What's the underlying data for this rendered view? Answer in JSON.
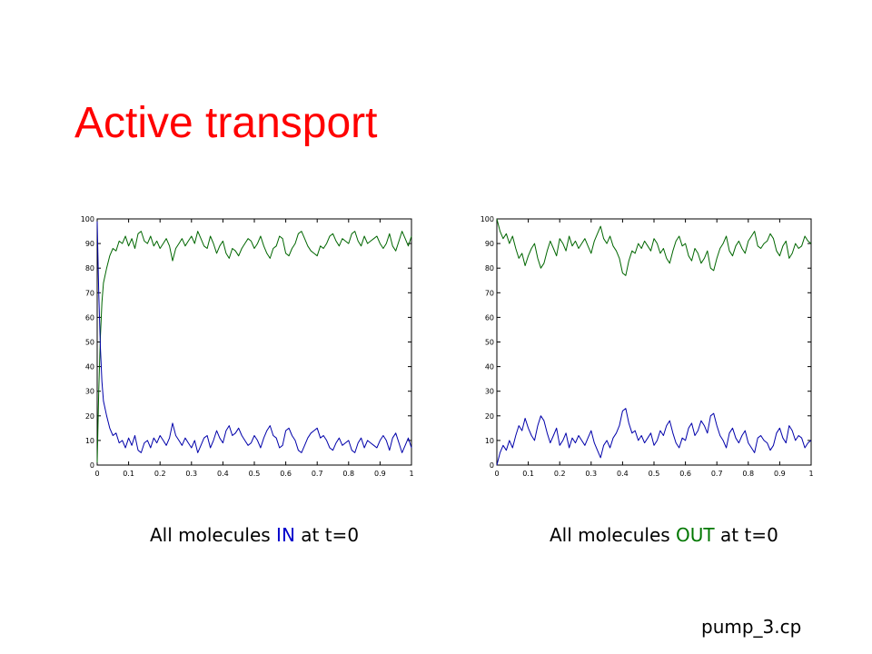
{
  "slide": {
    "title": "Active transport",
    "footer": "pump_3.cp"
  },
  "captions": [
    {
      "prefix": "All molecules ",
      "keyword": "IN",
      "keyword_color": "#0000cc",
      "suffix": " at t=0"
    },
    {
      "prefix": "All molecules ",
      "keyword": "OUT",
      "keyword_color": "#007700",
      "suffix": " at t=0"
    }
  ],
  "chart_data": [
    {
      "type": "line",
      "title": "",
      "xlabel": "",
      "ylabel": "",
      "xlim": [
        0,
        1
      ],
      "ylim": [
        0,
        100
      ],
      "xticks": [
        "0",
        "0.1",
        "0.2",
        "0.3",
        "0.4",
        "0.5",
        "0.6",
        "0.7",
        "0.8",
        "0.9",
        "1"
      ],
      "yticks": [
        "0",
        "10",
        "20",
        "30",
        "40",
        "50",
        "60",
        "70",
        "80",
        "90",
        "100"
      ],
      "grid": false,
      "series": [
        {
          "color": "#006600",
          "x": [
            0,
            0.005,
            0.01,
            0.015,
            0.02,
            0.03,
            0.04,
            0.05,
            0.06,
            0.07,
            0.08,
            0.09,
            0.1,
            0.11,
            0.12,
            0.13,
            0.14,
            0.15,
            0.16,
            0.17,
            0.18,
            0.19,
            0.2,
            0.21,
            0.22,
            0.23,
            0.24,
            0.25,
            0.26,
            0.27,
            0.28,
            0.29,
            0.3,
            0.31,
            0.32,
            0.33,
            0.34,
            0.35,
            0.36,
            0.37,
            0.38,
            0.39,
            0.4,
            0.41,
            0.42,
            0.43,
            0.44,
            0.45,
            0.46,
            0.47,
            0.48,
            0.49,
            0.5,
            0.51,
            0.52,
            0.53,
            0.54,
            0.55,
            0.56,
            0.57,
            0.58,
            0.59,
            0.6,
            0.61,
            0.62,
            0.63,
            0.64,
            0.65,
            0.66,
            0.67,
            0.68,
            0.69,
            0.7,
            0.71,
            0.72,
            0.73,
            0.74,
            0.75,
            0.76,
            0.77,
            0.78,
            0.79,
            0.8,
            0.81,
            0.82,
            0.83,
            0.84,
            0.85,
            0.86,
            0.87,
            0.88,
            0.89,
            0.9,
            0.91,
            0.92,
            0.93,
            0.94,
            0.95,
            0.96,
            0.97,
            0.98,
            0.99,
            1.0
          ],
          "y": [
            1,
            30,
            52,
            66,
            74,
            80,
            85,
            88,
            87,
            91,
            90,
            93,
            89,
            92,
            88,
            94,
            95,
            91,
            90,
            93,
            89,
            91,
            88,
            90,
            92,
            89,
            83,
            88,
            90,
            92,
            89,
            91,
            93,
            90,
            95,
            92,
            89,
            88,
            93,
            90,
            86,
            89,
            91,
            86,
            84,
            88,
            87,
            85,
            88,
            90,
            92,
            91,
            88,
            90,
            93,
            89,
            86,
            84,
            88,
            89,
            93,
            92,
            86,
            85,
            88,
            90,
            94,
            95,
            92,
            89,
            87,
            86,
            85,
            89,
            88,
            90,
            93,
            94,
            91,
            89,
            92,
            91,
            90,
            94,
            95,
            91,
            89,
            93,
            90,
            91,
            92,
            93,
            90,
            88,
            90,
            94,
            89,
            87,
            91,
            95,
            92,
            89,
            93
          ]
        },
        {
          "color": "#0000aa",
          "x": [
            0,
            0.005,
            0.01,
            0.015,
            0.02,
            0.03,
            0.04,
            0.05,
            0.06,
            0.07,
            0.08,
            0.09,
            0.1,
            0.11,
            0.12,
            0.13,
            0.14,
            0.15,
            0.16,
            0.17,
            0.18,
            0.19,
            0.2,
            0.21,
            0.22,
            0.23,
            0.24,
            0.25,
            0.26,
            0.27,
            0.28,
            0.29,
            0.3,
            0.31,
            0.32,
            0.33,
            0.34,
            0.35,
            0.36,
            0.37,
            0.38,
            0.39,
            0.4,
            0.41,
            0.42,
            0.43,
            0.44,
            0.45,
            0.46,
            0.47,
            0.48,
            0.49,
            0.5,
            0.51,
            0.52,
            0.53,
            0.54,
            0.55,
            0.56,
            0.57,
            0.58,
            0.59,
            0.6,
            0.61,
            0.62,
            0.63,
            0.64,
            0.65,
            0.66,
            0.67,
            0.68,
            0.69,
            0.7,
            0.71,
            0.72,
            0.73,
            0.74,
            0.75,
            0.76,
            0.77,
            0.78,
            0.79,
            0.8,
            0.81,
            0.82,
            0.83,
            0.84,
            0.85,
            0.86,
            0.87,
            0.88,
            0.89,
            0.9,
            0.91,
            0.92,
            0.93,
            0.94,
            0.95,
            0.96,
            0.97,
            0.98,
            0.99,
            1.0
          ],
          "y": [
            99,
            70,
            48,
            34,
            26,
            20,
            15,
            12,
            13,
            9,
            10,
            7,
            11,
            8,
            12,
            6,
            5,
            9,
            10,
            7,
            11,
            9,
            12,
            10,
            8,
            11,
            17,
            12,
            10,
            8,
            11,
            9,
            7,
            10,
            5,
            8,
            11,
            12,
            7,
            10,
            14,
            11,
            9,
            14,
            16,
            12,
            13,
            15,
            12,
            10,
            8,
            9,
            12,
            10,
            7,
            11,
            14,
            16,
            12,
            11,
            7,
            8,
            14,
            15,
            12,
            10,
            6,
            5,
            8,
            11,
            13,
            14,
            15,
            11,
            12,
            10,
            7,
            6,
            9,
            11,
            8,
            9,
            10,
            6,
            5,
            9,
            11,
            7,
            10,
            9,
            8,
            7,
            10,
            12,
            10,
            6,
            11,
            13,
            9,
            5,
            8,
            11,
            7
          ]
        }
      ]
    },
    {
      "type": "line",
      "title": "",
      "xlabel": "",
      "ylabel": "",
      "xlim": [
        0,
        1
      ],
      "ylim": [
        0,
        100
      ],
      "xticks": [
        "0",
        "0.1",
        "0.2",
        "0.3",
        "0.4",
        "0.5",
        "0.6",
        "0.7",
        "0.8",
        "0.9",
        "1"
      ],
      "yticks": [
        "0",
        "10",
        "20",
        "30",
        "40",
        "50",
        "60",
        "70",
        "80",
        "90",
        "100"
      ],
      "grid": false,
      "series": [
        {
          "color": "#006600",
          "x": [
            0,
            0.01,
            0.02,
            0.03,
            0.04,
            0.05,
            0.06,
            0.07,
            0.08,
            0.09,
            0.1,
            0.11,
            0.12,
            0.13,
            0.14,
            0.15,
            0.16,
            0.17,
            0.18,
            0.19,
            0.2,
            0.21,
            0.22,
            0.23,
            0.24,
            0.25,
            0.26,
            0.27,
            0.28,
            0.29,
            0.3,
            0.31,
            0.32,
            0.33,
            0.34,
            0.35,
            0.36,
            0.37,
            0.38,
            0.39,
            0.4,
            0.41,
            0.42,
            0.43,
            0.44,
            0.45,
            0.46,
            0.47,
            0.48,
            0.49,
            0.5,
            0.51,
            0.52,
            0.53,
            0.54,
            0.55,
            0.56,
            0.57,
            0.58,
            0.59,
            0.6,
            0.61,
            0.62,
            0.63,
            0.64,
            0.65,
            0.66,
            0.67,
            0.68,
            0.69,
            0.7,
            0.71,
            0.72,
            0.73,
            0.74,
            0.75,
            0.76,
            0.77,
            0.78,
            0.79,
            0.8,
            0.81,
            0.82,
            0.83,
            0.84,
            0.85,
            0.86,
            0.87,
            0.88,
            0.89,
            0.9,
            0.91,
            0.92,
            0.93,
            0.94,
            0.95,
            0.96,
            0.97,
            0.98,
            0.99,
            1.0
          ],
          "y": [
            100,
            95,
            92,
            94,
            90,
            93,
            88,
            84,
            86,
            81,
            85,
            88,
            90,
            84,
            80,
            82,
            87,
            91,
            88,
            85,
            92,
            90,
            87,
            93,
            89,
            91,
            88,
            90,
            92,
            89,
            86,
            91,
            94,
            97,
            92,
            90,
            93,
            89,
            87,
            84,
            78,
            77,
            83,
            87,
            86,
            90,
            88,
            91,
            89,
            87,
            92,
            90,
            86,
            88,
            84,
            82,
            87,
            91,
            93,
            89,
            90,
            85,
            83,
            88,
            86,
            82,
            84,
            87,
            80,
            79,
            84,
            88,
            90,
            93,
            87,
            85,
            89,
            91,
            88,
            86,
            91,
            93,
            95,
            89,
            88,
            90,
            91,
            94,
            92,
            87,
            85,
            89,
            91,
            84,
            86,
            90,
            88,
            89,
            93,
            91,
            90
          ]
        },
        {
          "color": "#0000aa",
          "x": [
            0,
            0.01,
            0.02,
            0.03,
            0.04,
            0.05,
            0.06,
            0.07,
            0.08,
            0.09,
            0.1,
            0.11,
            0.12,
            0.13,
            0.14,
            0.15,
            0.16,
            0.17,
            0.18,
            0.19,
            0.2,
            0.21,
            0.22,
            0.23,
            0.24,
            0.25,
            0.26,
            0.27,
            0.28,
            0.29,
            0.3,
            0.31,
            0.32,
            0.33,
            0.34,
            0.35,
            0.36,
            0.37,
            0.38,
            0.39,
            0.4,
            0.41,
            0.42,
            0.43,
            0.44,
            0.45,
            0.46,
            0.47,
            0.48,
            0.49,
            0.5,
            0.51,
            0.52,
            0.53,
            0.54,
            0.55,
            0.56,
            0.57,
            0.58,
            0.59,
            0.6,
            0.61,
            0.62,
            0.63,
            0.64,
            0.65,
            0.66,
            0.67,
            0.68,
            0.69,
            0.7,
            0.71,
            0.72,
            0.73,
            0.74,
            0.75,
            0.76,
            0.77,
            0.78,
            0.79,
            0.8,
            0.81,
            0.82,
            0.83,
            0.84,
            0.85,
            0.86,
            0.87,
            0.88,
            0.89,
            0.9,
            0.91,
            0.92,
            0.93,
            0.94,
            0.95,
            0.96,
            0.97,
            0.98,
            0.99,
            1.0
          ],
          "y": [
            0,
            5,
            8,
            6,
            10,
            7,
            12,
            16,
            14,
            19,
            15,
            12,
            10,
            16,
            20,
            18,
            13,
            9,
            12,
            15,
            8,
            10,
            13,
            7,
            11,
            9,
            12,
            10,
            8,
            11,
            14,
            9,
            6,
            3,
            8,
            10,
            7,
            11,
            13,
            16,
            22,
            23,
            17,
            13,
            14,
            10,
            12,
            9,
            11,
            13,
            8,
            10,
            14,
            12,
            16,
            18,
            13,
            9,
            7,
            11,
            10,
            15,
            17,
            12,
            14,
            18,
            16,
            13,
            20,
            21,
            16,
            12,
            10,
            7,
            13,
            15,
            11,
            9,
            12,
            14,
            9,
            7,
            5,
            11,
            12,
            10,
            9,
            6,
            8,
            13,
            15,
            11,
            9,
            16,
            14,
            10,
            12,
            11,
            7,
            9,
            10
          ]
        }
      ]
    }
  ]
}
